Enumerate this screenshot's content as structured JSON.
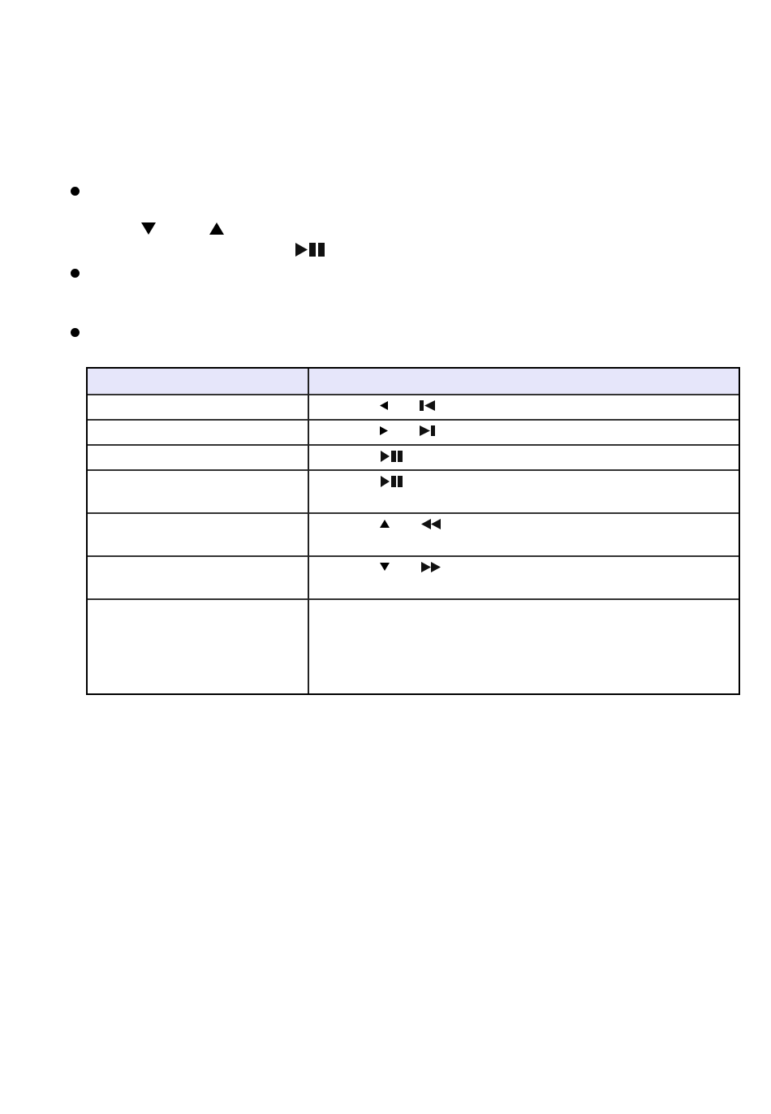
{
  "colors": {
    "table_header_bg": "#e6e6fa"
  },
  "bullets": [
    {
      "icons": [
        "triangle-down-icon",
        "triangle-up-icon",
        "play-pause-icon"
      ]
    },
    {
      "icons": []
    },
    {
      "icons": []
    }
  ],
  "table": {
    "rows": [
      {
        "icons": [
          "triangle-left-icon",
          "skip-previous-icon"
        ]
      },
      {
        "icons": [
          "triangle-right-icon",
          "skip-next-icon"
        ]
      },
      {
        "icons": [
          "play-pause-icon"
        ]
      },
      {
        "icons": [
          "play-pause-icon"
        ]
      },
      {
        "icons": [
          "triangle-up-icon",
          "rewind-icon"
        ]
      },
      {
        "icons": [
          "triangle-down-icon",
          "fast-forward-icon"
        ]
      },
      {
        "icons": []
      }
    ]
  }
}
